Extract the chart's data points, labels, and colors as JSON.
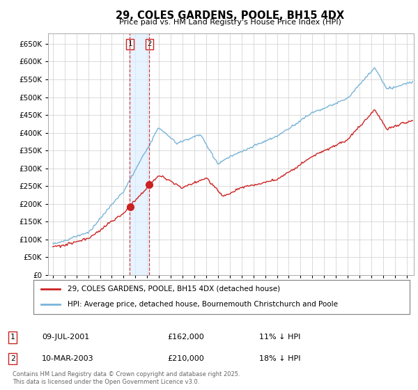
{
  "title": "29, COLES GARDENS, POOLE, BH15 4DX",
  "subtitle": "Price paid vs. HM Land Registry's House Price Index (HPI)",
  "legend_line1": "29, COLES GARDENS, POOLE, BH15 4DX (detached house)",
  "legend_line2": "HPI: Average price, detached house, Bournemouth Christchurch and Poole",
  "footer": "Contains HM Land Registry data © Crown copyright and database right 2025.\nThis data is licensed under the Open Government Licence v3.0.",
  "transaction1_date": "09-JUL-2001",
  "transaction1_price": "£162,000",
  "transaction1_hpi": "11% ↓ HPI",
  "transaction2_date": "10-MAR-2003",
  "transaction2_price": "£210,000",
  "transaction2_hpi": "18% ↓ HPI",
  "hpi_color": "#7ab4d8",
  "price_color": "#cc2222",
  "vline_color": "#cc2222",
  "shade_color": "#ddeeff",
  "vline1_x": 2001.53,
  "vline2_x": 2003.19,
  "ylim": [
    0,
    680000
  ],
  "yticks": [
    0,
    50000,
    100000,
    150000,
    200000,
    250000,
    300000,
    350000,
    400000,
    450000,
    500000,
    550000,
    600000,
    650000
  ],
  "xlim": [
    1994.6,
    2025.6
  ],
  "background_color": "#ffffff",
  "grid_color": "#cccccc"
}
